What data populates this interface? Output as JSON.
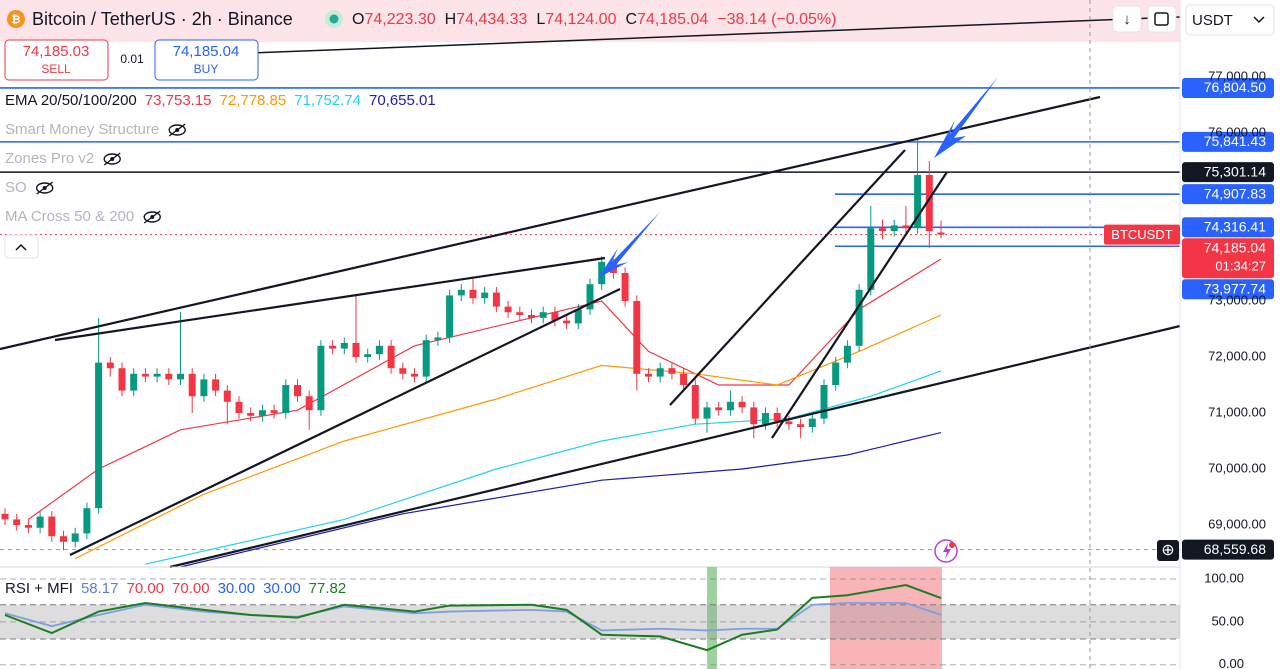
{
  "header": {
    "title": "Bitcoin / TetherUS · 2h · Binance",
    "ohlc": [
      {
        "key": "O",
        "value": "74,223.30"
      },
      {
        "key": "H",
        "value": "74,434.33"
      },
      {
        "key": "L",
        "value": "74,124.00"
      },
      {
        "key": "C",
        "value": "74,185.04"
      }
    ],
    "change": "−38.14 (−0.05%)",
    "currency": "USDT"
  },
  "trade": {
    "sell_price": "74,185.03",
    "sell": "SELL",
    "quantity": "0.01",
    "buy_price": "74,185.04",
    "buy": "BUY"
  },
  "indicators": {
    "ema": {
      "name": "EMA 20/50/100/200",
      "values": [
        "73,753.15",
        "72,778.85",
        "71,752.74",
        "70,655.01"
      ],
      "colors": [
        "#f23645",
        "#ff9800",
        "#22d3ee",
        "#1c1cb0"
      ]
    },
    "hidden": [
      "Smart Money Structure",
      "Zones Pro v2",
      "SO",
      "MA Cross 50 & 200"
    ]
  },
  "chart_data": [
    {
      "type": "candlestick",
      "symbol_label": "BTCUSDT",
      "countdown": "01:34:27",
      "ylim": [
        68250,
        78375
      ],
      "yticks": [
        {
          "value": 77000,
          "label": "77,000.00"
        },
        {
          "value": 76000,
          "label": "76,000.00"
        },
        {
          "value": 73000,
          "label": "73,000.00"
        },
        {
          "value": 72000,
          "label": "72,000.00"
        },
        {
          "value": 71000,
          "label": "71,000.00"
        },
        {
          "value": 70000,
          "label": "70,000.00"
        },
        {
          "value": 69000,
          "label": "69,000.00"
        }
      ],
      "up_color": "#089981",
      "down_color": "#f23645",
      "open": [
        69200,
        69100,
        69000,
        68950,
        69150,
        68800,
        68700,
        68850,
        69300,
        71900,
        71800,
        71400,
        71700,
        71650,
        71700,
        71600,
        71700,
        71300,
        71600,
        71400,
        71200,
        71000,
        70950,
        71050,
        71000,
        71500,
        71300,
        71050,
        72200,
        72150,
        72250,
        72000,
        72050,
        72200,
        71800,
        71700,
        71650,
        72300,
        72350,
        73100,
        73200,
        73050,
        73150,
        72900,
        72800,
        72750,
        72700,
        72800,
        72650,
        72600,
        72850,
        73300,
        73700,
        73500,
        73000,
        71700,
        71650,
        71800,
        71700,
        71500,
        70900,
        71100,
        71050,
        71200,
        71100,
        70800,
        71000,
        70850,
        70800,
        70750,
        70900,
        71500,
        71900,
        72200,
        73200,
        74300,
        74250,
        74350,
        74300,
        75250,
        74223.3
      ],
      "high": [
        69300,
        69200,
        69100,
        69250,
        69250,
        68900,
        68950,
        69400,
        72700,
        72000,
        71900,
        71800,
        71800,
        71800,
        71800,
        72800,
        71800,
        71700,
        71700,
        71500,
        71300,
        71100,
        71150,
        71150,
        71600,
        71600,
        71400,
        72300,
        72300,
        72350,
        73100,
        72150,
        72300,
        72300,
        71900,
        71800,
        72400,
        72450,
        73200,
        73300,
        73400,
        73250,
        73250,
        73000,
        72900,
        72850,
        72900,
        72900,
        72750,
        72950,
        73400,
        73800,
        73750,
        73600,
        73100,
        71800,
        71900,
        71900,
        71800,
        71600,
        71200,
        71200,
        71400,
        71300,
        71200,
        71100,
        71100,
        70950,
        70900,
        71000,
        71600,
        72000,
        72300,
        73300,
        74700,
        74450,
        74450,
        74700,
        75900,
        75500,
        74434.33
      ],
      "low": [
        69000,
        68900,
        68850,
        68850,
        68700,
        68550,
        68600,
        68750,
        69200,
        71650,
        71300,
        71300,
        71550,
        71550,
        71500,
        71500,
        71000,
        71200,
        71300,
        70800,
        70900,
        70850,
        70850,
        70900,
        70900,
        71200,
        70700,
        70950,
        72050,
        72050,
        71900,
        71900,
        71950,
        71700,
        71600,
        71550,
        71550,
        72200,
        72250,
        73000,
        72950,
        72950,
        72800,
        72700,
        72650,
        72600,
        72600,
        72550,
        72500,
        72500,
        72750,
        73200,
        73400,
        72900,
        71400,
        71550,
        71550,
        71600,
        71400,
        70800,
        70650,
        70950,
        70950,
        71000,
        70550,
        70700,
        70750,
        70700,
        70550,
        70650,
        70800,
        71400,
        71800,
        72100,
        73100,
        74100,
        74150,
        74200,
        74200,
        73950,
        74124
      ],
      "close": [
        69100,
        69000,
        68950,
        69150,
        68800,
        68700,
        68850,
        69300,
        71900,
        71800,
        71400,
        71700,
        71650,
        71700,
        71600,
        71700,
        71300,
        71600,
        71400,
        71200,
        71000,
        70950,
        71050,
        71000,
        71500,
        71300,
        71050,
        72200,
        72150,
        72250,
        72000,
        72050,
        72200,
        71800,
        71700,
        71650,
        72300,
        72350,
        73100,
        73200,
        73050,
        73150,
        72900,
        72800,
        72750,
        72700,
        72800,
        72650,
        72600,
        72850,
        73300,
        73700,
        73500,
        73000,
        71700,
        71650,
        71800,
        71700,
        71500,
        70900,
        71100,
        71050,
        71200,
        71100,
        70800,
        71000,
        70850,
        70800,
        70750,
        70900,
        71500,
        71900,
        72200,
        73200,
        74300,
        74250,
        74350,
        74300,
        75250,
        74250,
        74185.04
      ],
      "ema": [
        {
          "color": "#f23645",
          "x": [
            2,
            8,
            15,
            25,
            35,
            44,
            51,
            55,
            61,
            67,
            73,
            80
          ],
          "values": [
            69100,
            70000,
            70700,
            71050,
            72200,
            72650,
            73000,
            72100,
            71500,
            71500,
            72850,
            73750
          ]
        },
        {
          "color": "#ff9800",
          "x": [
            6,
            17,
            29,
            42,
            51,
            59,
            66,
            73,
            80
          ],
          "values": [
            68400,
            69550,
            70500,
            71250,
            71850,
            71700,
            71500,
            72100,
            72750
          ]
        },
        {
          "color": "#22d3ee",
          "x": [
            12,
            29,
            42,
            51,
            59,
            67,
            74,
            80
          ],
          "values": [
            68300,
            69100,
            70000,
            70500,
            70800,
            70900,
            71300,
            71750
          ]
        },
        {
          "color": "#1c1cb0",
          "x": [
            15,
            34,
            51,
            63,
            72,
            80
          ],
          "values": [
            68250,
            69200,
            69800,
            70000,
            70250,
            70650
          ]
        }
      ],
      "levels": {
        "values": [
          76804.5,
          75841.43,
          75301.14,
          74907.83,
          74316.41,
          74185.04,
          73977.74,
          68559.68
        ],
        "value_labels": [
          "76,804.50",
          "75,841.43",
          "75,301.14",
          "74,907.83",
          "74,316.41",
          "74,185.04",
          "73,977.74",
          "68,559.68"
        ],
        "colors": [
          "#2962ff",
          "#2962ff",
          "#131722",
          "#2962ff",
          "#2962ff",
          "#f23645",
          "#2962ff",
          "#131722"
        ]
      }
    },
    {
      "type": "line",
      "title": "RSI + MFI",
      "legend_values": [
        "58.17",
        "70.00",
        "70.00",
        "30.00",
        "30.00",
        "77.82"
      ],
      "legend_colors": [
        "#5b7fd6",
        "#f23645",
        "#f23645",
        "#2962ff",
        "#2962ff",
        "#1e7d22"
      ],
      "ylim": [
        -5,
        114
      ],
      "yticks": [
        {
          "value": 100,
          "label": "100.00"
        },
        {
          "value": 50,
          "label": "50.00"
        },
        {
          "value": 0,
          "label": "0.00"
        }
      ],
      "band": [
        30,
        70
      ],
      "series": [
        {
          "color": "#7e9fe0",
          "x": [
            0,
            4,
            8,
            12,
            17,
            21,
            25,
            29,
            35,
            38,
            45,
            48,
            51,
            56,
            60,
            63,
            66,
            69,
            72,
            77,
            80
          ],
          "values": [
            60,
            45,
            58,
            70,
            62,
            58,
            56,
            68,
            60,
            62,
            64,
            62,
            40,
            42,
            40,
            42,
            42,
            70,
            72,
            72,
            58.17
          ]
        },
        {
          "color": "#1e7d22",
          "x": [
            0,
            4,
            8,
            12,
            17,
            21,
            25,
            29,
            35,
            38,
            45,
            48,
            51,
            56,
            60,
            63,
            66,
            69,
            72,
            77,
            80
          ],
          "values": [
            58,
            37,
            62,
            72,
            64,
            58,
            55,
            70,
            62,
            69,
            70,
            64,
            35,
            33,
            17,
            35,
            41,
            78,
            81,
            93,
            77.82
          ]
        }
      ]
    }
  ]
}
